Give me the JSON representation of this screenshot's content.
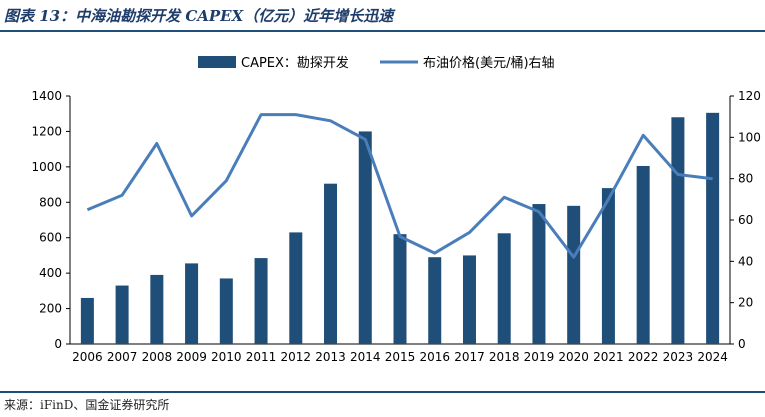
{
  "title": "图表 13：中海油勘探开发 CAPEX（亿元）近年增长迅速",
  "source": "来源：iFinD、国金证券研究所",
  "chart_data": {
    "type": "bar+line",
    "title": "中海油勘探开发 CAPEX（亿元）近年增长迅速",
    "categories": [
      "2006",
      "2007",
      "2008",
      "2009",
      "2010",
      "2011",
      "2012",
      "2013",
      "2014",
      "2015",
      "2016",
      "2017",
      "2018",
      "2019",
      "2020",
      "2021",
      "2022",
      "2023",
      "2024"
    ],
    "series": [
      {
        "name": "CAPEX：勘探开发",
        "type": "bar",
        "axis": "left",
        "color": "#1f4e79",
        "values": [
          260,
          330,
          390,
          455,
          370,
          485,
          630,
          905,
          1200,
          620,
          490,
          500,
          625,
          790,
          780,
          880,
          1005,
          1280,
          1305
        ]
      },
      {
        "name": "布油价格(美元/桶)右轴",
        "type": "line",
        "axis": "right",
        "color": "#4a7ebb",
        "values": [
          65,
          72,
          97,
          62,
          79,
          111,
          111,
          108,
          99,
          52,
          44,
          54,
          71,
          64,
          42,
          70,
          101,
          82,
          80
        ]
      }
    ],
    "y_left": {
      "min": 0,
      "max": 1400,
      "step": 200,
      "ticks": [
        "0",
        "200",
        "400",
        "600",
        "800",
        "1000",
        "1200",
        "1400"
      ]
    },
    "y_right": {
      "min": 0,
      "max": 120,
      "step": 20,
      "ticks": [
        "0",
        "20",
        "40",
        "60",
        "80",
        "100",
        "120"
      ]
    },
    "legend_position": "top-center",
    "grid": false
  }
}
